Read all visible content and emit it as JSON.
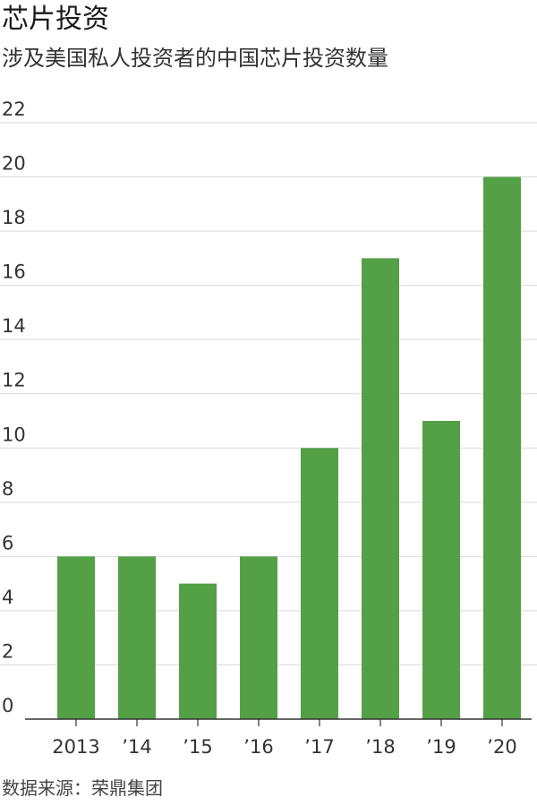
{
  "chart_data": {
    "type": "bar",
    "title": "芯片投资",
    "subtitle": "涉及美国私人投资者的中国芯片投资数量",
    "categories": [
      "2013",
      "’14",
      "’15",
      "’16",
      "’17",
      "’18",
      "’19",
      "’20"
    ],
    "values": [
      6,
      6,
      5,
      6,
      10,
      17,
      11,
      20
    ],
    "xlabel": "",
    "ylabel": "",
    "ylim": [
      0,
      22
    ],
    "yticks": [
      "0",
      "2",
      "4",
      "6",
      "8",
      "10",
      "12",
      "14",
      "16",
      "18",
      "20",
      "22"
    ],
    "grid": true,
    "legend": "none",
    "colors": {
      "bar": "#53a047",
      "grid": "#d9d9d9",
      "axis": "#333333"
    }
  },
  "footer": {
    "source": "数据来源：荣鼎集团"
  }
}
